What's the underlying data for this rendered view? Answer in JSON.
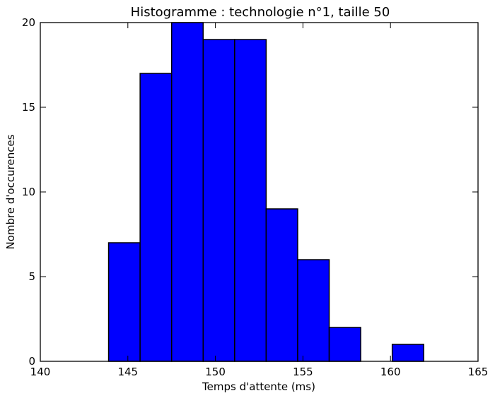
{
  "chart_data": {
    "type": "bar",
    "title": "Histogramme : technologie n°1, taille 50",
    "xlabel": "Temps d'attente (ms)",
    "ylabel": "Nombre d'occurences",
    "xlim": [
      140,
      165
    ],
    "ylim": [
      0,
      20
    ],
    "x_ticks": [
      140,
      145,
      150,
      155,
      160,
      165
    ],
    "y_ticks": [
      0,
      5,
      10,
      15,
      20
    ],
    "bins": [
      {
        "start": 143.9,
        "end": 145.7,
        "count": 7
      },
      {
        "start": 145.7,
        "end": 147.5,
        "count": 17
      },
      {
        "start": 147.5,
        "end": 149.3,
        "count": 20
      },
      {
        "start": 149.3,
        "end": 151.1,
        "count": 19
      },
      {
        "start": 151.1,
        "end": 152.9,
        "count": 19
      },
      {
        "start": 152.9,
        "end": 154.7,
        "count": 9
      },
      {
        "start": 154.7,
        "end": 156.5,
        "count": 6
      },
      {
        "start": 156.5,
        "end": 158.3,
        "count": 2
      },
      {
        "start": 158.3,
        "end": 160.1,
        "count": 0
      },
      {
        "start": 160.1,
        "end": 161.9,
        "count": 1
      }
    ],
    "bar_color": "#0000ff",
    "edge_color": "#000000",
    "grid": false
  }
}
